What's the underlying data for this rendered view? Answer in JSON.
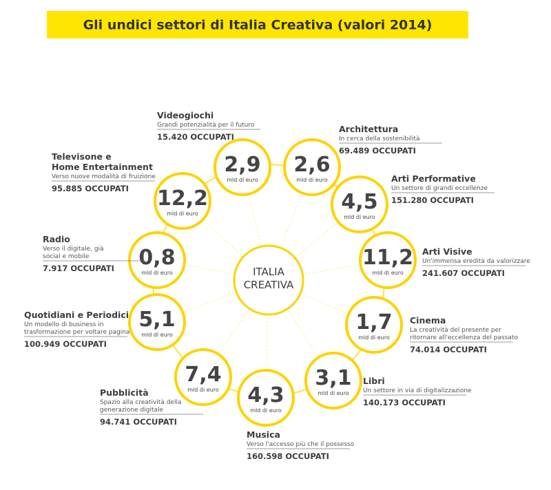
{
  "header": {
    "title": "Gli undici settori di Italia Creativa (valori 2014)"
  },
  "center": {
    "lines": [
      "ITALIA",
      "CREATIVA"
    ]
  },
  "sectors": [
    {
      "name": [
        "Videogiochi"
      ],
      "subtitle": [
        "Grandi potenzialità per il futuro"
      ],
      "value": "2,9",
      "unit": "mld di euro",
      "employed": "15.420 OCCUPATI"
    },
    {
      "name": [
        "Architettura"
      ],
      "subtitle": [
        "In cerca della sostenibilità"
      ],
      "value": "2,6",
      "unit": "mld di euro",
      "employed": "69.489 OCCUPATI"
    },
    {
      "name": [
        "Arti Performative"
      ],
      "subtitle": [
        "Un settore di grandi eccellenze"
      ],
      "value": "4,5",
      "unit": "mld di euro",
      "employed": "151.280 OCCUPATI"
    },
    {
      "name": [
        "Arti Visive"
      ],
      "subtitle": [
        "Un'immensa eredità da valorizzare"
      ],
      "value": "11,2",
      "unit": "mld di euro",
      "employed": "241.607 OCCUPATI"
    },
    {
      "name": [
        "Cinema"
      ],
      "subtitle": [
        "La creatività del presente per",
        "ritornare all'eccellenza del passato"
      ],
      "value": "1,7",
      "unit": "mld di euro",
      "employed": "74.014 OCCUPATI"
    },
    {
      "name": [
        "Libri"
      ],
      "subtitle": [
        "Un settore in via di digitalizzazione"
      ],
      "value": "3,1",
      "unit": "mld di euro",
      "employed": "140.173 OCCUPATI"
    },
    {
      "name": [
        "Musica"
      ],
      "subtitle": [
        "Verso l'accesso più che il possesso"
      ],
      "value": "4,3",
      "unit": "mld di euro",
      "employed": "160.598 OCCUPATI"
    },
    {
      "name": [
        "Pubblicità"
      ],
      "subtitle": [
        "Spazio alla creatività della",
        "generazione digitale"
      ],
      "value": "7,4",
      "unit": "mld di euro",
      "employed": "94.741 OCCUPATI"
    },
    {
      "name": [
        "Quotidiani e Periodici"
      ],
      "subtitle": [
        "Un modello di business in",
        "trasformazione per voltare pagina"
      ],
      "value": "5,1",
      "unit": "mld di euro",
      "employed": "100.949 OCCUPATI"
    },
    {
      "name": [
        "Radio"
      ],
      "subtitle": [
        "Verso il digitale, già",
        "social e mobile"
      ],
      "value": "0,8",
      "unit": "mld di euro",
      "employed": "7.917 OCCUPATI"
    },
    {
      "name": [
        "Televisone e",
        "Home Entertainment"
      ],
      "subtitle": [
        "Verso nuove modalità di fruizione"
      ],
      "value": "12,2",
      "unit": "mld di euro",
      "employed": "95.885 OCCUPATI"
    }
  ]
}
